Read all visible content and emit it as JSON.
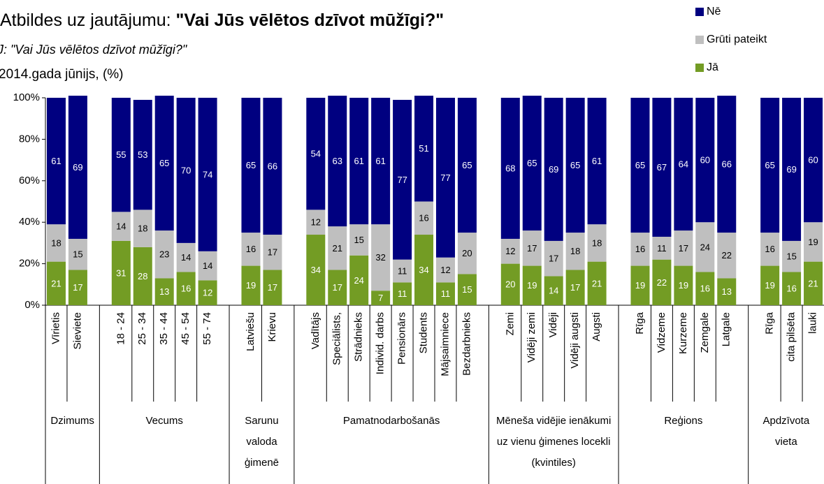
{
  "chart_data": {
    "type": "stacked_bar",
    "title": {
      "text": "Atbildes uz jautājumu:",
      "emphasis": "\"Vai Jūs vēlētos dzīvot mūžīgi?\""
    },
    "subtitle": "J: \"Vai Jūs vēlētos dzīvot mūžīgi?\"",
    "note": "2014.gada jūnijs, (%)",
    "groups": [
      {
        "label": "Dzimums",
        "categories": [
          "Vīrietis",
          "Sieviete"
        ]
      },
      {
        "label": "Vecums",
        "categories": [
          "18 - 24",
          "25 - 34",
          "35 - 44",
          "45 - 54",
          "55 - 74"
        ]
      },
      {
        "label": "Sarunu valoda ģimenē",
        "categories": [
          "Latviešu",
          "Krievu"
        ]
      },
      {
        "label": "Pamatnodarbošanās",
        "categories": [
          "Vadītājs",
          "Speciālists,",
          "Strādnieks",
          "Individ. darbs",
          "Pensionārs",
          "Students",
          "Mājsaimniece",
          "Bezdarbnieks"
        ]
      },
      {
        "label": "Mēneša vidējie ienākumi uz vienu ģimenes locekli (kvintiles)",
        "categories": [
          "Zemi",
          "Vidēji zemi",
          "Vidēji",
          "Vidēji augsti",
          "Augsti"
        ]
      },
      {
        "label": "Reģions",
        "categories": [
          "Rīga",
          "Vidzeme",
          "Kurzeme",
          "Zemgale",
          "Latgale"
        ]
      },
      {
        "label": "Apdzīvota vieta",
        "categories": [
          "Rīga",
          "cita pilsēta",
          "lauki"
        ]
      }
    ],
    "series": [
      {
        "name": "Jā",
        "color": "#739c24",
        "values": [
          21,
          17,
          31,
          28,
          13,
          16,
          12,
          19,
          17,
          34,
          17,
          24,
          7,
          11,
          34,
          11,
          15,
          20,
          19,
          14,
          17,
          21,
          19,
          22,
          19,
          16,
          13,
          19,
          16,
          21
        ]
      },
      {
        "name": "Grūti pateikt",
        "color": "#bfbfbf",
        "values": [
          18,
          15,
          14,
          18,
          23,
          14,
          14,
          16,
          17,
          12,
          21,
          15,
          32,
          11,
          16,
          12,
          20,
          12,
          17,
          17,
          18,
          18,
          16,
          11,
          17,
          24,
          22,
          16,
          15,
          19
        ]
      },
      {
        "name": "Nē",
        "color": "#000080",
        "values": [
          61,
          69,
          55,
          53,
          65,
          70,
          74,
          65,
          66,
          54,
          63,
          61,
          61,
          77,
          51,
          77,
          65,
          68,
          65,
          69,
          65,
          61,
          65,
          67,
          64,
          60,
          66,
          65,
          69,
          60
        ]
      }
    ],
    "ylim": [
      0,
      100
    ],
    "yticks": [
      {
        "value": 0,
        "label": "0%"
      },
      {
        "value": 20,
        "label": "20%"
      },
      {
        "value": 40,
        "label": "40%"
      },
      {
        "value": 60,
        "label": "60%"
      },
      {
        "value": 80,
        "label": "80%"
      },
      {
        "value": 100,
        "label": "100%"
      }
    ],
    "legend": "top-right"
  }
}
